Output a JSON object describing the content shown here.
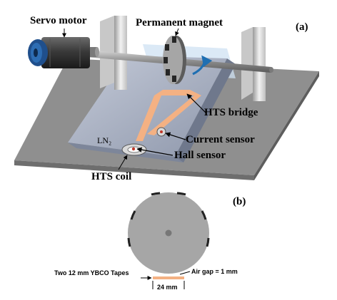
{
  "panel_a": {
    "tag": "(a)",
    "labels": {
      "servo_motor": "Servo motor",
      "permanent_magnet": "Permanent magnet",
      "hts_bridge": "HTS bridge",
      "ln2": "LN₂",
      "current_sensor": "Current sensor",
      "hall_sensor": "Hall sensor",
      "hts_coil": "HTS coil"
    }
  },
  "panel_b": {
    "tag": "(b)",
    "labels": {
      "tapes": "Two 12 mm YBCO Tapes",
      "air_gap": "Air gap = 1 mm",
      "width": "24 mm"
    }
  },
  "colors": {
    "base_plate": "#8f8f8f",
    "ln2_channel": "#a9b2c6",
    "hts_tape": "#f4b183",
    "rotor_disk": "#a6a6a6",
    "magnet_slot": "#262626",
    "rotation_arrow": "#1f6fb2",
    "transparent_cover": "#cfe1f3"
  }
}
